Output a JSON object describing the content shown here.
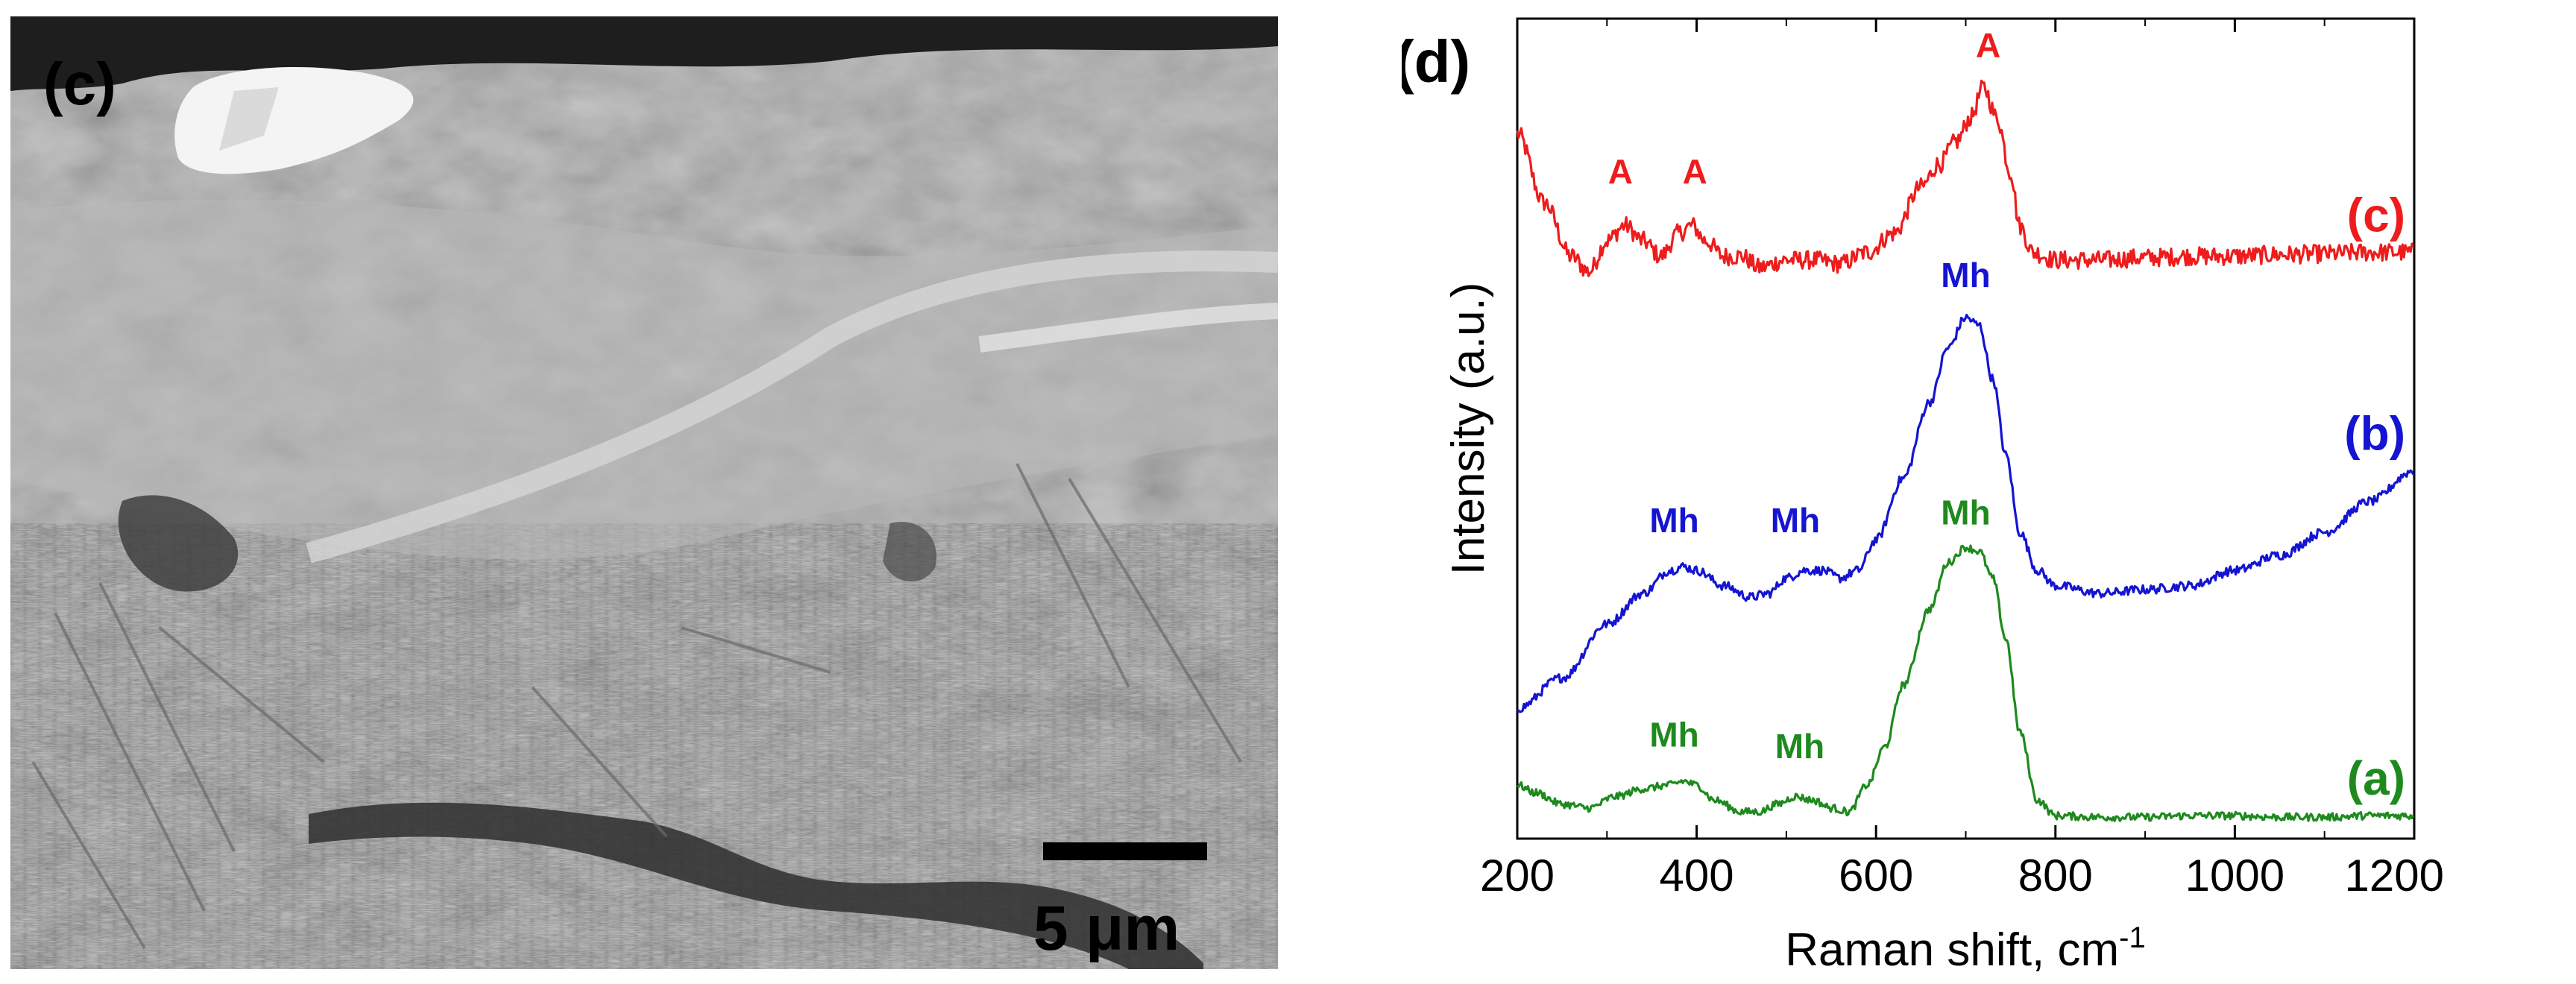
{
  "micrograph": {
    "panel_label": "(c)",
    "scale_bar_label": "5 μm"
  },
  "chart_data": {
    "type": "line",
    "panel_label": "(d)",
    "title": "",
    "xlabel": "Raman shift, cm",
    "xlabel_superscript": "-1",
    "ylabel": "Intensity (a.u.)",
    "xlim": [
      200,
      1200
    ],
    "x_ticks": [
      200,
      400,
      600,
      800,
      1000,
      1200
    ],
    "y_ticks_shown": false,
    "grid": false,
    "legend": "none; series labelled at right end of each trace",
    "series": [
      {
        "name": "(c)",
        "color": "#ee1c1c",
        "x": [
          200,
          230,
          260,
          280,
          300,
          320,
          340,
          360,
          380,
          395,
          410,
          430,
          450,
          470,
          500,
          530,
          560,
          590,
          620,
          650,
          670,
          690,
          705,
          720,
          735,
          750,
          760,
          775,
          800,
          850,
          900,
          950,
          1000,
          1050,
          1100,
          1150,
          1200
        ],
        "values": [
          0.92,
          0.83,
          0.76,
          0.74,
          0.78,
          0.8,
          0.78,
          0.76,
          0.79,
          0.8,
          0.78,
          0.76,
          0.76,
          0.745,
          0.755,
          0.755,
          0.75,
          0.765,
          0.79,
          0.85,
          0.88,
          0.91,
          0.94,
          0.98,
          0.94,
          0.87,
          0.8,
          0.765,
          0.755,
          0.755,
          0.758,
          0.76,
          0.76,
          0.762,
          0.763,
          0.765,
          0.765
        ]
      },
      {
        "name": "(b)",
        "color": "#1414d2",
        "x": [
          200,
          250,
          300,
          340,
          370,
          385,
          400,
          430,
          460,
          480,
          500,
          520,
          540,
          560,
          580,
          600,
          630,
          660,
          680,
          700,
          715,
          730,
          745,
          760,
          780,
          800,
          850,
          900,
          950,
          1000,
          1050,
          1100,
          1150,
          1200
        ],
        "values": [
          0.17,
          0.21,
          0.28,
          0.32,
          0.35,
          0.355,
          0.35,
          0.33,
          0.315,
          0.32,
          0.34,
          0.35,
          0.35,
          0.34,
          0.35,
          0.39,
          0.47,
          0.57,
          0.64,
          0.68,
          0.67,
          0.6,
          0.5,
          0.4,
          0.35,
          0.33,
          0.32,
          0.325,
          0.33,
          0.35,
          0.37,
          0.4,
          0.44,
          0.48
        ]
      },
      {
        "name": "(a)",
        "color": "#1e8a1e",
        "x": [
          200,
          220,
          250,
          280,
          310,
          340,
          370,
          385,
          400,
          420,
          450,
          470,
          490,
          510,
          530,
          550,
          570,
          590,
          610,
          630,
          660,
          680,
          700,
          715,
          730,
          745,
          760,
          780,
          800,
          850,
          900,
          950,
          1000,
          1050,
          1100,
          1150,
          1200
        ],
        "values": [
          0.07,
          0.06,
          0.045,
          0.04,
          0.055,
          0.065,
          0.07,
          0.075,
          0.07,
          0.05,
          0.035,
          0.035,
          0.045,
          0.055,
          0.05,
          0.04,
          0.035,
          0.07,
          0.12,
          0.2,
          0.3,
          0.36,
          0.38,
          0.375,
          0.34,
          0.26,
          0.14,
          0.05,
          0.03,
          0.028,
          0.028,
          0.03,
          0.03,
          0.028,
          0.028,
          0.03,
          0.03
        ]
      }
    ],
    "annotations": [
      {
        "text": "A",
        "x": 315,
        "y": 0.855,
        "color": "#ee1c1c"
      },
      {
        "text": "A",
        "x": 398,
        "y": 0.855,
        "color": "#ee1c1c"
      },
      {
        "text": "A",
        "x": 725,
        "y": 1.02,
        "color": "#ee1c1c"
      },
      {
        "text": "Mh",
        "x": 700,
        "y": 0.72,
        "color": "#1414d2"
      },
      {
        "text": "Mh",
        "x": 375,
        "y": 0.4,
        "color": "#1414d2"
      },
      {
        "text": "Mh",
        "x": 510,
        "y": 0.4,
        "color": "#1414d2"
      },
      {
        "text": "Mh",
        "x": 700,
        "y": 0.41,
        "color": "#1e8a1e"
      },
      {
        "text": "Mh",
        "x": 375,
        "y": 0.12,
        "color": "#1e8a1e"
      },
      {
        "text": "Mh",
        "x": 515,
        "y": 0.105,
        "color": "#1e8a1e"
      }
    ]
  }
}
